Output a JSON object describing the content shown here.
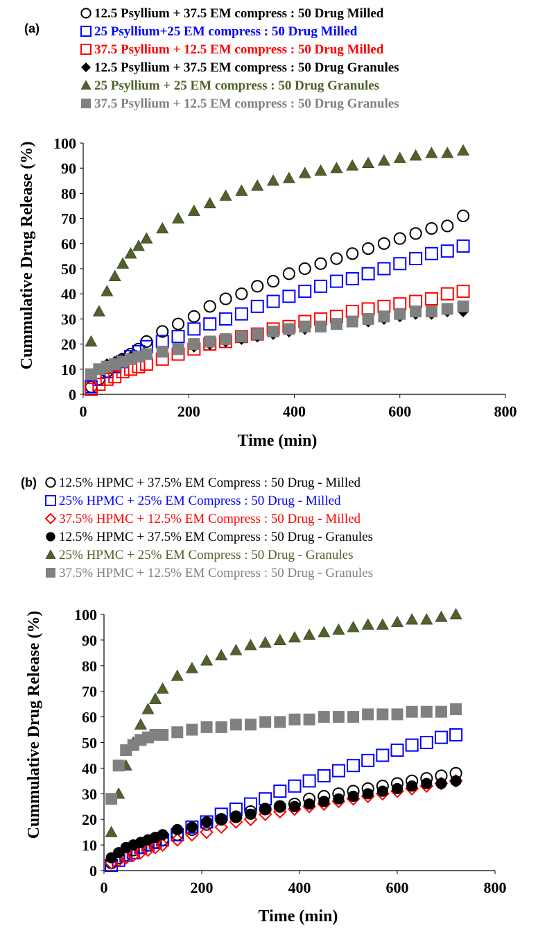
{
  "chart_data": [
    {
      "panel_label": "(a)",
      "type": "scatter",
      "xlabel": "Time (min)",
      "ylabel": "Cummulative Drug  Release (%)",
      "xlim": [
        0,
        800
      ],
      "ylim": [
        0,
        100
      ],
      "xticks": [
        0,
        200,
        400,
        600,
        800
      ],
      "yticks": [
        0,
        10,
        20,
        30,
        40,
        50,
        60,
        70,
        80,
        90,
        100
      ],
      "legend_placement": "top, above plot",
      "series": [
        {
          "name": "12.5 Psyllium + 37.5 EM compress : 50 Drug Milled",
          "marker": "circle-open",
          "color": "#000000",
          "x": [
            15,
            30,
            45,
            60,
            75,
            90,
            105,
            120,
            150,
            180,
            210,
            240,
            270,
            300,
            330,
            360,
            390,
            420,
            450,
            480,
            510,
            540,
            570,
            600,
            630,
            660,
            690,
            720
          ],
          "y": [
            3,
            6,
            9,
            11,
            14,
            16,
            18,
            21,
            25,
            28,
            31,
            35,
            38,
            40,
            43,
            45,
            48,
            50,
            52,
            54,
            56,
            58,
            60,
            62,
            64,
            66,
            67,
            71
          ]
        },
        {
          "name": "25 Psyllium+25 EM compress : 50 Drug Milled",
          "marker": "square-open",
          "color": "#0000FF",
          "x": [
            15,
            30,
            45,
            60,
            75,
            90,
            105,
            120,
            150,
            180,
            210,
            240,
            270,
            300,
            330,
            360,
            390,
            420,
            450,
            480,
            510,
            540,
            570,
            600,
            630,
            660,
            690,
            720
          ],
          "y": [
            3,
            6,
            9,
            11,
            13,
            15,
            17,
            19,
            21,
            23,
            26,
            28,
            30,
            32,
            35,
            37,
            39,
            41,
            43,
            45,
            46,
            48,
            50,
            52,
            54,
            56,
            57,
            59
          ]
        },
        {
          "name": "37.5 Psyllium + 12.5 EM compress : 50 Drug Milled",
          "marker": "square-open",
          "color": "#FF0000",
          "x": [
            15,
            30,
            45,
            60,
            75,
            90,
            105,
            120,
            150,
            180,
            210,
            240,
            270,
            300,
            330,
            360,
            390,
            420,
            450,
            480,
            510,
            540,
            570,
            600,
            630,
            660,
            690,
            720
          ],
          "y": [
            2,
            4,
            6,
            7,
            9,
            10,
            11,
            12,
            14,
            16,
            18,
            20,
            21,
            23,
            24,
            26,
            27,
            29,
            30,
            31,
            33,
            34,
            35,
            36,
            37,
            38,
            40,
            41
          ]
        },
        {
          "name": "12.5 Psyllium + 37.5 EM compress : 50 Drug Granules",
          "marker": "diamond-filled",
          "color": "#000000",
          "x": [
            15,
            30,
            45,
            60,
            75,
            90,
            105,
            120,
            150,
            180,
            210,
            240,
            270,
            300,
            330,
            360,
            390,
            420,
            450,
            480,
            510,
            540,
            570,
            600,
            630,
            660,
            690,
            720
          ],
          "y": [
            8,
            10,
            12,
            13,
            14,
            15,
            15,
            16,
            17,
            18,
            19,
            20,
            21,
            22,
            23,
            24,
            25,
            26,
            27,
            28,
            29,
            29,
            30,
            31,
            32,
            32,
            33,
            33
          ]
        },
        {
          "name": "25 Psyllium + 25 EM compress : 50 Drug Granules",
          "marker": "triangle-filled",
          "color": "#4F6228",
          "x": [
            15,
            30,
            45,
            60,
            75,
            90,
            105,
            120,
            150,
            180,
            210,
            240,
            270,
            300,
            330,
            360,
            390,
            420,
            450,
            480,
            510,
            540,
            570,
            600,
            630,
            660,
            690,
            720
          ],
          "y": [
            21,
            33,
            41,
            47,
            52,
            56,
            59,
            62,
            66,
            70,
            73,
            76,
            79,
            81,
            83,
            85,
            86,
            88,
            89,
            90,
            91,
            92,
            93,
            94,
            95,
            96,
            96,
            97
          ]
        },
        {
          "name": "37.5 Psyllium + 12.5 EM compress : 50 Drug Granules",
          "marker": "square-filled",
          "color": "#808080",
          "x": [
            15,
            30,
            45,
            60,
            75,
            90,
            105,
            120,
            150,
            180,
            210,
            240,
            270,
            300,
            330,
            360,
            390,
            420,
            450,
            480,
            510,
            540,
            570,
            600,
            630,
            660,
            690,
            720
          ],
          "y": [
            8,
            10,
            11,
            12,
            13,
            14,
            15,
            16,
            17,
            18,
            20,
            21,
            22,
            23,
            24,
            25,
            26,
            27,
            27,
            28,
            29,
            30,
            31,
            32,
            33,
            33,
            34,
            35
          ]
        }
      ]
    },
    {
      "panel_label": "(b)",
      "type": "scatter",
      "xlabel": "Time (min)",
      "ylabel": "Cummulative Drug  Release (%)",
      "xlim": [
        0,
        800
      ],
      "ylim": [
        0,
        100
      ],
      "xticks": [
        0,
        200,
        400,
        600,
        800
      ],
      "yticks": [
        0,
        10,
        20,
        30,
        40,
        50,
        60,
        70,
        80,
        90,
        100
      ],
      "legend_placement": "top, above plot",
      "series": [
        {
          "name": "12.5% HPMC + 37.5% EM Compress : 50 Drug - Milled",
          "marker": "circle-open",
          "color": "#000000",
          "x": [
            15,
            30,
            45,
            60,
            75,
            90,
            105,
            120,
            150,
            180,
            210,
            240,
            270,
            300,
            330,
            360,
            390,
            420,
            450,
            480,
            510,
            540,
            570,
            600,
            630,
            660,
            690,
            720
          ],
          "y": [
            3,
            5,
            6,
            8,
            9,
            10,
            11,
            12,
            14,
            16,
            18,
            20,
            21,
            23,
            24,
            25,
            26,
            28,
            29,
            30,
            31,
            32,
            33,
            34,
            35,
            36,
            37,
            38
          ]
        },
        {
          "name": "25% HPMC + 25% EM Compress : 50 Drug - Milled",
          "marker": "square-open",
          "color": "#0000FF",
          "x": [
            15,
            30,
            45,
            60,
            75,
            90,
            105,
            120,
            150,
            180,
            210,
            240,
            270,
            300,
            330,
            360,
            390,
            420,
            450,
            480,
            510,
            540,
            570,
            600,
            630,
            660,
            690,
            720
          ],
          "y": [
            2,
            4,
            6,
            7,
            9,
            10,
            11,
            12,
            14,
            17,
            19,
            22,
            24,
            26,
            28,
            31,
            33,
            35,
            37,
            39,
            41,
            43,
            45,
            47,
            49,
            50,
            52,
            53
          ]
        },
        {
          "name": "37.5% HPMC + 12.5% EM Compress : 50 Drug - Milled",
          "marker": "diamond-open",
          "color": "#FF0000",
          "x": [
            15,
            30,
            45,
            60,
            75,
            90,
            105,
            120,
            150,
            180,
            210,
            240,
            270,
            300,
            330,
            360,
            390,
            420,
            450,
            480,
            510,
            540,
            570,
            600,
            630,
            660,
            690,
            720
          ],
          "y": [
            3,
            4,
            5,
            6,
            7,
            8,
            9,
            10,
            12,
            14,
            15,
            17,
            19,
            20,
            22,
            23,
            24,
            25,
            26,
            27,
            28,
            29,
            30,
            31,
            32,
            33,
            34,
            35
          ]
        },
        {
          "name": "12.5% HPMC + 37.5% EM Compress : 50 Drug - Granules",
          "marker": "circle-filled",
          "color": "#000000",
          "x": [
            15,
            30,
            45,
            60,
            75,
            90,
            105,
            120,
            150,
            180,
            210,
            240,
            270,
            300,
            330,
            360,
            390,
            420,
            450,
            480,
            510,
            540,
            570,
            600,
            630,
            660,
            690,
            720
          ],
          "y": [
            5,
            7,
            9,
            10,
            11,
            12,
            13,
            14,
            16,
            17,
            19,
            20,
            21,
            22,
            24,
            25,
            25,
            26,
            27,
            28,
            29,
            30,
            31,
            32,
            33,
            34,
            34,
            35
          ]
        },
        {
          "name": "25% HPMC + 25% EM Compress : 50 Drug - Granules",
          "marker": "triangle-filled",
          "color": "#4F6228",
          "x": [
            15,
            30,
            45,
            60,
            75,
            90,
            105,
            120,
            150,
            180,
            210,
            240,
            270,
            300,
            330,
            360,
            390,
            420,
            450,
            480,
            510,
            540,
            570,
            600,
            630,
            660,
            690,
            720
          ],
          "y": [
            15,
            30,
            41,
            50,
            57,
            63,
            67,
            71,
            76,
            79,
            82,
            84,
            86,
            88,
            89,
            90,
            91,
            92,
            93,
            94,
            95,
            96,
            96,
            97,
            98,
            98,
            99,
            100
          ]
        },
        {
          "name": "37.5% HPMC + 12.5% EM Compress : 50 Drug - Granules",
          "marker": "square-filled",
          "color": "#808080",
          "x": [
            15,
            30,
            45,
            60,
            75,
            90,
            105,
            120,
            150,
            180,
            210,
            240,
            270,
            300,
            330,
            360,
            390,
            420,
            450,
            480,
            510,
            540,
            570,
            600,
            630,
            660,
            690,
            720
          ],
          "y": [
            28,
            41,
            47,
            49,
            51,
            52,
            53,
            53,
            54,
            55,
            56,
            56,
            57,
            57,
            58,
            58,
            59,
            59,
            60,
            60,
            60,
            61,
            61,
            61,
            62,
            62,
            62,
            63
          ]
        }
      ]
    }
  ]
}
